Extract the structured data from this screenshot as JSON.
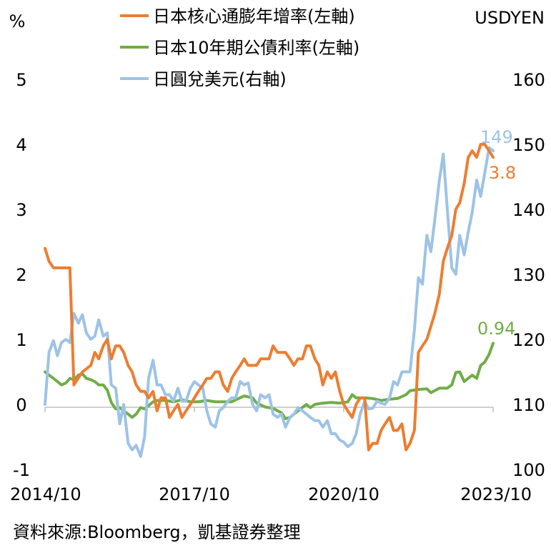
{
  "chart_data": {
    "type": "line",
    "left_axis_unit": "%",
    "right_axis_unit": "USDYEN",
    "y_left": {
      "ticks": [
        -1,
        0,
        1,
        2,
        3,
        4,
        5
      ],
      "range": [
        -1,
        5
      ]
    },
    "y_right": {
      "ticks": [
        100,
        110,
        120,
        130,
        140,
        150,
        160
      ],
      "range": [
        100,
        160
      ]
    },
    "x_tick_labels": [
      "2014/10",
      "2017/10",
      "2020/10",
      "2023/10"
    ],
    "x_tick_years": [
      2014.75,
      2017.75,
      2020.75,
      2023.75
    ],
    "legend_position": "top-center",
    "source": "資料來源:Bloomberg，凱基證券整理",
    "series": [
      {
        "name": "日本核心通膨年增率(左軸)",
        "color": "#ED7D31",
        "axis": "left",
        "end_label": "3.8",
        "points": [
          [
            2014.75,
            2.4
          ],
          [
            2014.83,
            2.2
          ],
          [
            2014.92,
            2.1
          ],
          [
            2015.0,
            2.1
          ],
          [
            2015.25,
            2.1
          ],
          [
            2015.33,
            0.3
          ],
          [
            2015.5,
            0.5
          ],
          [
            2015.67,
            0.6
          ],
          [
            2015.75,
            0.8
          ],
          [
            2015.83,
            0.7
          ],
          [
            2015.92,
            0.9
          ],
          [
            2016.0,
            1.0
          ],
          [
            2016.08,
            0.7
          ],
          [
            2016.17,
            0.9
          ],
          [
            2016.25,
            0.9
          ],
          [
            2016.33,
            0.8
          ],
          [
            2016.42,
            0.6
          ],
          [
            2016.5,
            0.5
          ],
          [
            2016.58,
            0.3
          ],
          [
            2016.67,
            0.2
          ],
          [
            2016.75,
            0.2
          ],
          [
            2016.83,
            0.1
          ],
          [
            2016.92,
            0.2
          ],
          [
            2017.0,
            -0.1
          ],
          [
            2017.08,
            0.1
          ],
          [
            2017.17,
            0.1
          ],
          [
            2017.25,
            -0.2
          ],
          [
            2017.33,
            -0.1
          ],
          [
            2017.42,
            0.0
          ],
          [
            2017.5,
            -0.2
          ],
          [
            2017.58,
            -0.1
          ],
          [
            2017.67,
            0.0
          ],
          [
            2017.75,
            0.1
          ],
          [
            2017.83,
            0.2
          ],
          [
            2017.92,
            0.3
          ],
          [
            2018.0,
            0.4
          ],
          [
            2018.08,
            0.4
          ],
          [
            2018.17,
            0.5
          ],
          [
            2018.25,
            0.5
          ],
          [
            2018.33,
            0.3
          ],
          [
            2018.42,
            0.2
          ],
          [
            2018.5,
            0.4
          ],
          [
            2018.58,
            0.5
          ],
          [
            2018.67,
            0.6
          ],
          [
            2018.75,
            0.7
          ],
          [
            2018.83,
            0.6
          ],
          [
            2018.92,
            0.6
          ],
          [
            2019.0,
            0.6
          ],
          [
            2019.08,
            0.7
          ],
          [
            2019.17,
            0.7
          ],
          [
            2019.25,
            0.7
          ],
          [
            2019.33,
            0.9
          ],
          [
            2019.42,
            0.8
          ],
          [
            2019.5,
            0.8
          ],
          [
            2019.58,
            0.8
          ],
          [
            2019.67,
            0.7
          ],
          [
            2019.75,
            0.6
          ],
          [
            2019.83,
            0.7
          ],
          [
            2019.92,
            0.7
          ],
          [
            2020.0,
            0.9
          ],
          [
            2020.08,
            0.9
          ],
          [
            2020.17,
            0.7
          ],
          [
            2020.25,
            0.6
          ],
          [
            2020.33,
            0.3
          ],
          [
            2020.42,
            0.5
          ],
          [
            2020.5,
            0.4
          ],
          [
            2020.58,
            0.5
          ],
          [
            2020.67,
            0.2
          ],
          [
            2020.75,
            0.0
          ],
          [
            2020.83,
            -0.1
          ],
          [
            2020.92,
            -0.2
          ],
          [
            2021.0,
            0.0
          ],
          [
            2021.08,
            0.1
          ],
          [
            2021.17,
            0.1
          ],
          [
            2021.25,
            -0.7
          ],
          [
            2021.33,
            -0.6
          ],
          [
            2021.42,
            -0.6
          ],
          [
            2021.5,
            -0.4
          ],
          [
            2021.58,
            -0.3
          ],
          [
            2021.67,
            -0.2
          ],
          [
            2021.75,
            -0.4
          ],
          [
            2021.83,
            -0.4
          ],
          [
            2021.92,
            -0.3
          ],
          [
            2022.0,
            -0.7
          ],
          [
            2022.08,
            -0.6
          ],
          [
            2022.17,
            -0.4
          ],
          [
            2022.25,
            0.8
          ],
          [
            2022.33,
            0.9
          ],
          [
            2022.42,
            1.0
          ],
          [
            2022.5,
            1.2
          ],
          [
            2022.58,
            1.4
          ],
          [
            2022.67,
            1.7
          ],
          [
            2022.75,
            2.2
          ],
          [
            2022.83,
            2.4
          ],
          [
            2022.92,
            2.6
          ],
          [
            2023.0,
            3.0
          ],
          [
            2023.08,
            3.1
          ],
          [
            2023.17,
            3.4
          ],
          [
            2023.25,
            3.8
          ],
          [
            2023.33,
            3.9
          ],
          [
            2023.42,
            3.8
          ],
          [
            2023.5,
            4.0
          ],
          [
            2023.58,
            4.0
          ],
          [
            2023.67,
            3.9
          ],
          [
            2023.75,
            3.8
          ]
        ]
      },
      {
        "name": "日本10年期公債利率(左軸)",
        "color": "#70AD47",
        "axis": "left",
        "end_label": "0.94",
        "points": [
          [
            2014.75,
            0.5
          ],
          [
            2014.83,
            0.45
          ],
          [
            2014.92,
            0.4
          ],
          [
            2015.0,
            0.35
          ],
          [
            2015.08,
            0.3
          ],
          [
            2015.17,
            0.33
          ],
          [
            2015.25,
            0.4
          ],
          [
            2015.33,
            0.38
          ],
          [
            2015.42,
            0.45
          ],
          [
            2015.5,
            0.47
          ],
          [
            2015.58,
            0.4
          ],
          [
            2015.67,
            0.38
          ],
          [
            2015.75,
            0.35
          ],
          [
            2015.83,
            0.3
          ],
          [
            2015.92,
            0.3
          ],
          [
            2016.0,
            0.22
          ],
          [
            2016.08,
            0.03
          ],
          [
            2016.17,
            -0.07
          ],
          [
            2016.25,
            -0.05
          ],
          [
            2016.33,
            -0.1
          ],
          [
            2016.42,
            -0.15
          ],
          [
            2016.5,
            -0.2
          ],
          [
            2016.58,
            -0.15
          ],
          [
            2016.67,
            -0.05
          ],
          [
            2016.75,
            -0.07
          ],
          [
            2016.83,
            -0.02
          ],
          [
            2016.92,
            0.04
          ],
          [
            2017.0,
            0.06
          ],
          [
            2017.17,
            0.06
          ],
          [
            2017.33,
            0.04
          ],
          [
            2017.5,
            0.07
          ],
          [
            2017.67,
            0.04
          ],
          [
            2017.83,
            0.04
          ],
          [
            2018.0,
            0.06
          ],
          [
            2018.17,
            0.04
          ],
          [
            2018.33,
            0.04
          ],
          [
            2018.5,
            0.04
          ],
          [
            2018.58,
            0.07
          ],
          [
            2018.75,
            0.13
          ],
          [
            2018.92,
            0.1
          ],
          [
            2019.0,
            0.02
          ],
          [
            2019.17,
            -0.04
          ],
          [
            2019.33,
            -0.06
          ],
          [
            2019.5,
            -0.13
          ],
          [
            2019.58,
            -0.22
          ],
          [
            2019.67,
            -0.2
          ],
          [
            2019.83,
            -0.1
          ],
          [
            2020.0,
            0.0
          ],
          [
            2020.08,
            -0.05
          ],
          [
            2020.17,
            0.0
          ],
          [
            2020.33,
            0.02
          ],
          [
            2020.5,
            0.03
          ],
          [
            2020.67,
            0.02
          ],
          [
            2020.83,
            0.04
          ],
          [
            2020.92,
            0.15
          ],
          [
            2021.0,
            0.1
          ],
          [
            2021.17,
            0.1
          ],
          [
            2021.33,
            0.09
          ],
          [
            2021.5,
            0.06
          ],
          [
            2021.67,
            0.08
          ],
          [
            2021.83,
            0.09
          ],
          [
            2022.0,
            0.15
          ],
          [
            2022.08,
            0.21
          ],
          [
            2022.25,
            0.23
          ],
          [
            2022.42,
            0.24
          ],
          [
            2022.5,
            0.18
          ],
          [
            2022.67,
            0.25
          ],
          [
            2022.83,
            0.25
          ],
          [
            2022.92,
            0.3
          ],
          [
            2023.0,
            0.49
          ],
          [
            2023.08,
            0.5
          ],
          [
            2023.17,
            0.35
          ],
          [
            2023.33,
            0.45
          ],
          [
            2023.42,
            0.4
          ],
          [
            2023.5,
            0.6
          ],
          [
            2023.58,
            0.65
          ],
          [
            2023.67,
            0.77
          ],
          [
            2023.75,
            0.94
          ]
        ]
      },
      {
        "name": "日圓兌美元(右軸)",
        "color": "#9DC3E6",
        "axis": "right",
        "end_label": "149",
        "points": [
          [
            2014.75,
            110
          ],
          [
            2014.83,
            118
          ],
          [
            2014.92,
            119.8
          ],
          [
            2015.0,
            117.5
          ],
          [
            2015.08,
            119.5
          ],
          [
            2015.17,
            120
          ],
          [
            2015.25,
            119.5
          ],
          [
            2015.33,
            124
          ],
          [
            2015.42,
            122.5
          ],
          [
            2015.5,
            123.8
          ],
          [
            2015.58,
            121
          ],
          [
            2015.67,
            120
          ],
          [
            2015.75,
            120.5
          ],
          [
            2015.83,
            123
          ],
          [
            2015.92,
            120.5
          ],
          [
            2016.0,
            121
          ],
          [
            2016.08,
            113
          ],
          [
            2016.17,
            112.5
          ],
          [
            2016.25,
            107
          ],
          [
            2016.33,
            110
          ],
          [
            2016.42,
            104
          ],
          [
            2016.5,
            103
          ],
          [
            2016.58,
            103.7
          ],
          [
            2016.67,
            102
          ],
          [
            2016.75,
            105
          ],
          [
            2016.83,
            114
          ],
          [
            2016.92,
            116.8
          ],
          [
            2017.0,
            113
          ],
          [
            2017.08,
            113
          ],
          [
            2017.17,
            111.5
          ],
          [
            2017.25,
            111.5
          ],
          [
            2017.33,
            110.5
          ],
          [
            2017.42,
            112.5
          ],
          [
            2017.5,
            110.5
          ],
          [
            2017.58,
            110.5
          ],
          [
            2017.67,
            112.5
          ],
          [
            2017.75,
            113.5
          ],
          [
            2017.83,
            113
          ],
          [
            2017.92,
            112.5
          ],
          [
            2018.0,
            109
          ],
          [
            2018.08,
            107
          ],
          [
            2018.17,
            106.5
          ],
          [
            2018.25,
            109
          ],
          [
            2018.33,
            109.5
          ],
          [
            2018.42,
            110.5
          ],
          [
            2018.5,
            111
          ],
          [
            2018.58,
            111
          ],
          [
            2018.67,
            113.5
          ],
          [
            2018.75,
            113
          ],
          [
            2018.83,
            113.3
          ],
          [
            2018.92,
            110
          ],
          [
            2019.0,
            109
          ],
          [
            2019.08,
            111.5
          ],
          [
            2019.17,
            111
          ],
          [
            2019.25,
            111.5
          ],
          [
            2019.33,
            108.5
          ],
          [
            2019.42,
            108
          ],
          [
            2019.5,
            108.5
          ],
          [
            2019.58,
            106.5
          ],
          [
            2019.67,
            108
          ],
          [
            2019.75,
            108.5
          ],
          [
            2019.83,
            109.5
          ],
          [
            2019.92,
            109
          ],
          [
            2020.0,
            108.5
          ],
          [
            2020.08,
            108
          ],
          [
            2020.17,
            107.5
          ],
          [
            2020.25,
            107.5
          ],
          [
            2020.33,
            106.5
          ],
          [
            2020.42,
            107.5
          ],
          [
            2020.5,
            105.5
          ],
          [
            2020.58,
            105.5
          ],
          [
            2020.67,
            104.5
          ],
          [
            2020.75,
            104.2
          ],
          [
            2020.83,
            103.5
          ],
          [
            2020.92,
            104
          ],
          [
            2021.0,
            105.5
          ],
          [
            2021.08,
            108.5
          ],
          [
            2021.17,
            110.5
          ],
          [
            2021.25,
            109.3
          ],
          [
            2021.33,
            109.4
          ],
          [
            2021.42,
            110.5
          ],
          [
            2021.5,
            110.2
          ],
          [
            2021.58,
            110
          ],
          [
            2021.67,
            111
          ],
          [
            2021.75,
            113.5
          ],
          [
            2021.83,
            113
          ],
          [
            2021.92,
            115
          ],
          [
            2022.0,
            115
          ],
          [
            2022.08,
            115
          ],
          [
            2022.17,
            121.5
          ],
          [
            2022.25,
            129.5
          ],
          [
            2022.33,
            128.5
          ],
          [
            2022.42,
            136
          ],
          [
            2022.5,
            133.5
          ],
          [
            2022.58,
            138.5
          ],
          [
            2022.67,
            144.5
          ],
          [
            2022.75,
            148.5
          ],
          [
            2022.83,
            140
          ],
          [
            2022.92,
            131
          ],
          [
            2023.0,
            130
          ],
          [
            2023.08,
            136
          ],
          [
            2023.17,
            133
          ],
          [
            2023.25,
            136.5
          ],
          [
            2023.33,
            139.5
          ],
          [
            2023.42,
            144.5
          ],
          [
            2023.5,
            142
          ],
          [
            2023.58,
            145.5
          ],
          [
            2023.67,
            149.5
          ],
          [
            2023.75,
            149
          ]
        ]
      }
    ]
  }
}
